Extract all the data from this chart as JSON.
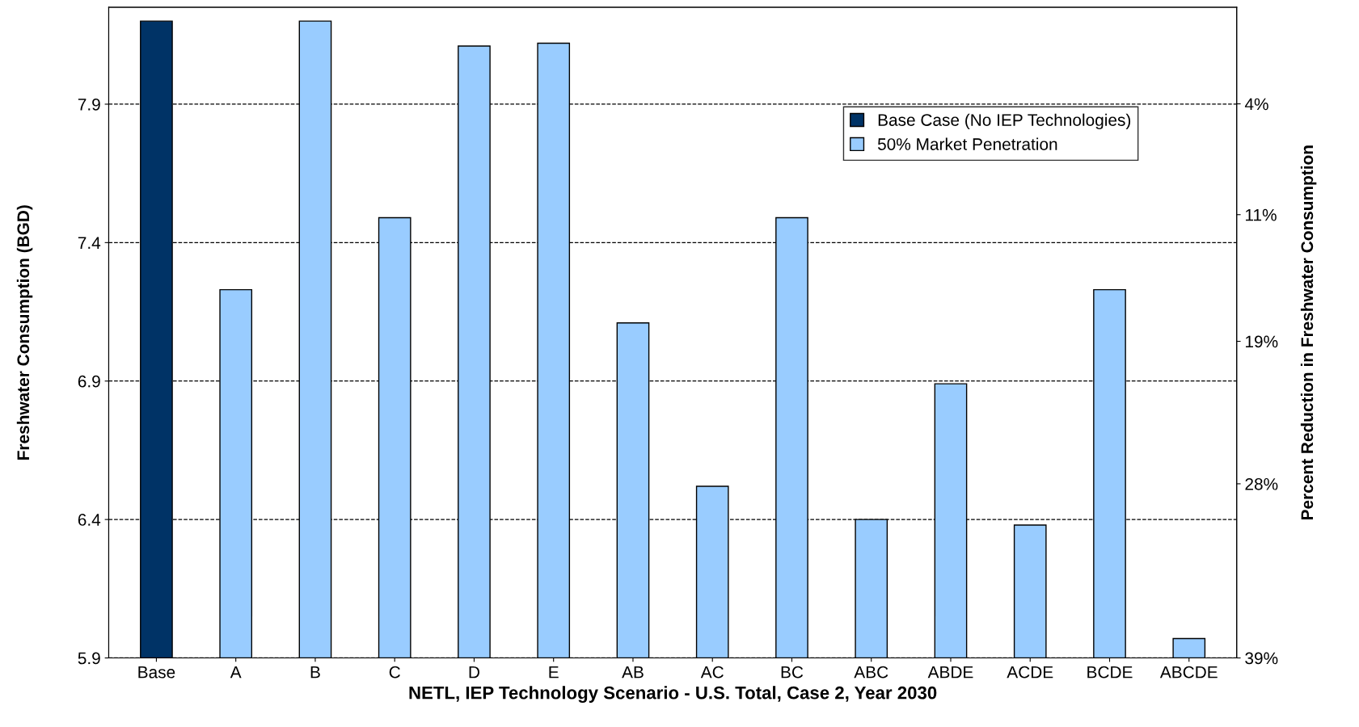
{
  "chart_data": {
    "type": "bar",
    "xlabel": "NETL, IEP Technology Scenario - U.S. Total, Case 2, Year 2030",
    "ylabel": "Freshwater Consumption (BGD)",
    "y2label": "Percent Reduction in Freshwater Consumption",
    "categories": [
      "Base",
      "A",
      "B",
      "C",
      "D",
      "E",
      "AB",
      "AC",
      "BC",
      "ABC",
      "ABDE",
      "ACDE",
      "BCDE",
      "ABCDE"
    ],
    "series": [
      {
        "name": "Base Case (No IEP Technologies)",
        "color": "#003366",
        "values": [
          8.2,
          null,
          null,
          null,
          null,
          null,
          null,
          null,
          null,
          null,
          null,
          null,
          null,
          null
        ]
      },
      {
        "name": "50% Market Penetration",
        "color": "#99ccff",
        "values": [
          null,
          7.23,
          8.2,
          7.49,
          8.11,
          8.12,
          7.11,
          6.52,
          7.49,
          6.4,
          6.89,
          6.38,
          7.23,
          5.97
        ]
      }
    ],
    "ylim": [
      5.9,
      8.25
    ],
    "yticks": [
      5.9,
      6.4,
      6.9,
      7.4,
      7.9
    ],
    "y2lim": [
      39,
      -2.1
    ],
    "y2ticks": [
      {
        "value": 39,
        "label": "39%"
      },
      {
        "value": 28,
        "label": "28%"
      },
      {
        "value": 19,
        "label": "19%"
      },
      {
        "value": 11,
        "label": "11%"
      },
      {
        "value": 4,
        "label": "4%"
      }
    ],
    "grid": "y",
    "legend": "top right"
  }
}
